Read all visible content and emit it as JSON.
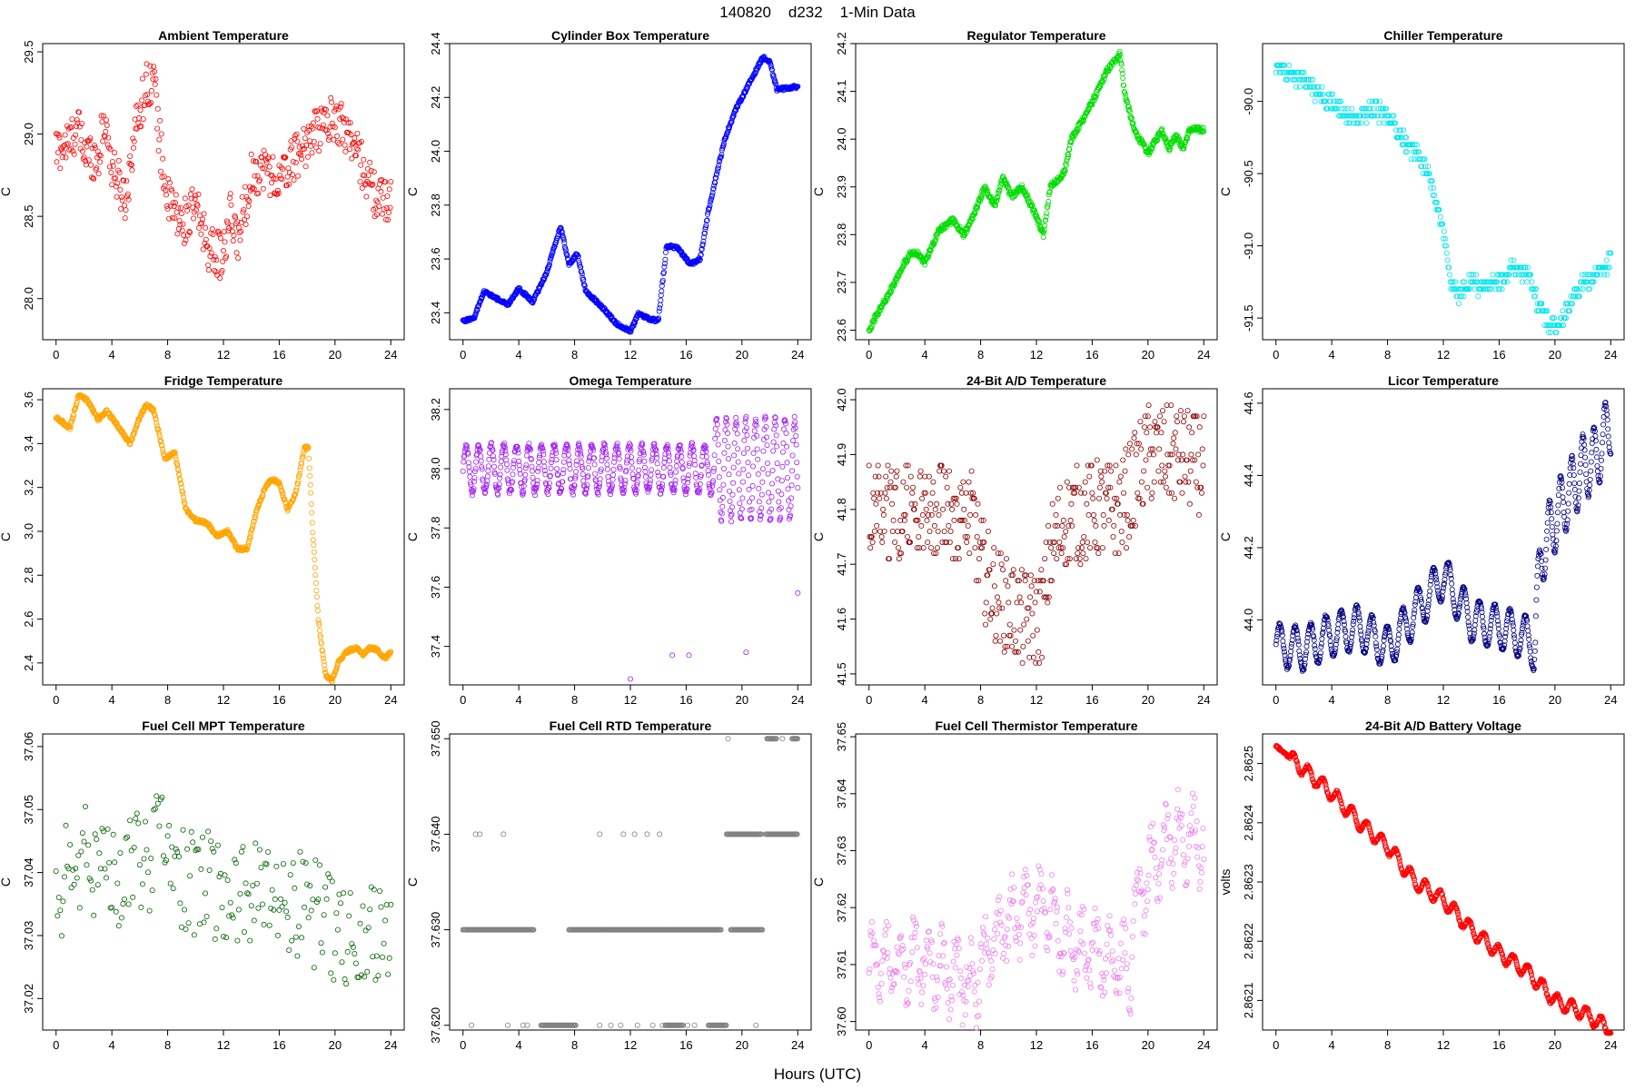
{
  "figure": {
    "title": "140820    d232    1-Min Data",
    "xlabel": "Hours (UTC)"
  },
  "chart_data": [
    {
      "type": "scatter",
      "title": "Ambient Temperature",
      "color": "#ff0000",
      "ylabel": "C",
      "xlim": [
        0,
        24
      ],
      "xticks": [
        0,
        4,
        8,
        12,
        16,
        20,
        24
      ],
      "ylim": [
        27.75,
        29.55
      ],
      "yticks": [
        28.0,
        28.5,
        29.0,
        29.5
      ],
      "ytick_labels": [
        "28.0",
        "28.5",
        "29.0",
        "29.5"
      ],
      "x": [
        0,
        1,
        1.5,
        2,
        3,
        3.5,
        4,
        5,
        5.5,
        6,
        6.5,
        7,
        7.5,
        8,
        9,
        10,
        11,
        12,
        12.5,
        13,
        14,
        15,
        16,
        17,
        18,
        19,
        20,
        21,
        22,
        23,
        24
      ],
      "y": [
        28.9,
        28.95,
        29.05,
        28.9,
        28.85,
        29.1,
        28.8,
        28.6,
        28.95,
        29.15,
        29.3,
        29.35,
        28.9,
        28.6,
        28.45,
        28.55,
        28.3,
        28.25,
        28.5,
        28.35,
        28.75,
        28.8,
        28.7,
        28.85,
        28.95,
        29.05,
        29.1,
        29.0,
        28.8,
        28.6,
        28.6
      ],
      "spread": 0.14,
      "dense": 2
    },
    {
      "type": "scatter",
      "title": "Cylinder Box Temperature",
      "color": "#0000ff",
      "ylabel": "C",
      "xlim": [
        0,
        24
      ],
      "xticks": [
        0,
        4,
        8,
        12,
        16,
        20,
        24
      ],
      "ylim": [
        23.3,
        24.4
      ],
      "yticks": [
        23.4,
        23.6,
        23.8,
        24.0,
        24.2,
        24.4
      ],
      "ytick_labels": [
        "23.4",
        "23.6",
        "23.8",
        "24.0",
        "24.2",
        "24.4"
      ],
      "x": [
        0,
        0.8,
        1.5,
        2.5,
        3.2,
        4,
        5,
        6,
        7,
        7.6,
        8.2,
        8.8,
        10,
        11,
        12,
        12.6,
        13.2,
        14,
        14.6,
        15.4,
        16.3,
        17,
        17.6,
        18.2,
        18.8,
        19.5,
        20.5,
        21.5,
        22,
        22.5,
        24
      ],
      "y": [
        23.37,
        23.38,
        23.48,
        23.45,
        23.43,
        23.49,
        23.44,
        23.55,
        23.72,
        23.58,
        23.62,
        23.48,
        23.42,
        23.36,
        23.33,
        23.4,
        23.38,
        23.37,
        23.65,
        23.64,
        23.58,
        23.6,
        23.78,
        23.92,
        24.05,
        24.15,
        24.25,
        24.35,
        24.33,
        24.23,
        24.24
      ],
      "spread": 0.006,
      "dense": 3
    },
    {
      "type": "scatter",
      "title": "Regulator Temperature",
      "color": "#00dd00",
      "ylabel": "C",
      "xlim": [
        0,
        24
      ],
      "xticks": [
        0,
        4,
        8,
        12,
        16,
        20,
        24
      ],
      "ylim": [
        23.58,
        24.2
      ],
      "yticks": [
        23.6,
        23.7,
        23.8,
        23.9,
        24.0,
        24.1,
        24.2
      ],
      "ytick_labels": [
        "23.6",
        "23.7",
        "23.8",
        "23.9",
        "24.0",
        "24.1",
        "24.2"
      ],
      "x": [
        0,
        0.5,
        1.5,
        2.5,
        3,
        3.5,
        4,
        5,
        6,
        6.8,
        7.5,
        8.3,
        9,
        9.6,
        10.2,
        11,
        11.8,
        12.5,
        13,
        14,
        14.5,
        15.5,
        16.4,
        17,
        17.5,
        18,
        18.3,
        19,
        20,
        21,
        21.5,
        22,
        22.5,
        23,
        24
      ],
      "y": [
        23.6,
        23.63,
        23.68,
        23.74,
        23.76,
        23.76,
        23.74,
        23.81,
        23.83,
        23.8,
        23.84,
        23.9,
        23.86,
        23.92,
        23.88,
        23.9,
        23.85,
        23.8,
        23.9,
        23.93,
        24.0,
        24.05,
        24.1,
        24.14,
        24.16,
        24.18,
        24.1,
        24.02,
        23.97,
        24.02,
        23.98,
        24.01,
        23.98,
        24.02,
        24.02
      ],
      "spread": 0.006,
      "dense": 3
    },
    {
      "type": "scatter",
      "title": "Chiller Temperature",
      "color": "#00e5ee",
      "ylabel": "C",
      "xlim": [
        0,
        24
      ],
      "xticks": [
        0,
        4,
        8,
        12,
        16,
        20,
        24
      ],
      "ylim": [
        -91.65,
        -89.6
      ],
      "yticks": [
        -90.0,
        -90.5,
        -91.0,
        -91.5
      ],
      "ytick_labels": [
        "-90.0",
        "-90.5",
        "-91.0",
        "-91.5"
      ],
      "x": [
        0,
        1,
        2,
        3,
        4,
        5,
        6,
        7,
        8,
        9,
        10,
        11,
        12,
        12.5,
        13,
        14,
        15,
        16,
        17,
        18,
        19,
        20,
        21,
        22,
        23,
        24
      ],
      "y": [
        -89.78,
        -89.8,
        -89.85,
        -89.95,
        -90.0,
        -90.1,
        -90.12,
        -90.05,
        -90.1,
        -90.25,
        -90.35,
        -90.5,
        -90.9,
        -91.25,
        -91.35,
        -91.25,
        -91.3,
        -91.25,
        -91.15,
        -91.2,
        -91.45,
        -91.58,
        -91.4,
        -91.25,
        -91.2,
        -91.1
      ],
      "spread": 0.06,
      "dense": 2,
      "quantize": 0.05
    },
    {
      "type": "scatter",
      "title": "Fridge Temperature",
      "color": "#ffa500",
      "ylabel": "C",
      "xlim": [
        0,
        24
      ],
      "xticks": [
        0,
        4,
        8,
        12,
        16,
        20,
        24
      ],
      "ylim": [
        2.3,
        3.65
      ],
      "yticks": [
        2.4,
        2.6,
        2.8,
        3.0,
        3.2,
        3.4,
        3.6
      ],
      "ytick_labels": [
        "2.4",
        "2.6",
        "2.8",
        "3.0",
        "3.2",
        "3.4",
        "3.6"
      ],
      "x": [
        0,
        1,
        1.6,
        2.2,
        3,
        3.6,
        4.2,
        5.3,
        6,
        6.5,
        7,
        7.8,
        8.5,
        9.3,
        10,
        10.8,
        11.5,
        12.3,
        13,
        13.7,
        14.4,
        15,
        15.5,
        16,
        16.6,
        17.2,
        17.8,
        18.1,
        18.4,
        18.8,
        19.3,
        19.8,
        20.2,
        20.8,
        21.5,
        22,
        22.5,
        23,
        23.6,
        24
      ],
      "y": [
        3.52,
        3.47,
        3.62,
        3.6,
        3.51,
        3.55,
        3.5,
        3.4,
        3.52,
        3.58,
        3.55,
        3.33,
        3.36,
        3.1,
        3.05,
        3.04,
        2.98,
        3.0,
        2.92,
        2.92,
        3.1,
        3.2,
        3.24,
        3.22,
        3.1,
        3.18,
        3.38,
        3.38,
        3.0,
        2.6,
        2.35,
        2.32,
        2.4,
        2.45,
        2.47,
        2.44,
        2.47,
        2.46,
        2.42,
        2.45
      ],
      "spread": 0.008,
      "dense": 3
    },
    {
      "type": "scatter",
      "title": "Omega Temperature",
      "color": "#a020f0",
      "ylabel": "C",
      "xlim": [
        0,
        24
      ],
      "xticks": [
        0,
        4,
        8,
        12,
        16,
        20,
        24
      ],
      "ylim": [
        37.27,
        38.27
      ],
      "yticks": [
        37.4,
        37.6,
        37.8,
        38.0,
        38.2
      ],
      "ytick_labels": [
        "37.4",
        "37.6",
        "37.8",
        "38.0",
        "38.2"
      ],
      "x": [
        0,
        18,
        18.01,
        24
      ],
      "y": [
        38.0,
        38.0,
        38.0,
        38.0
      ],
      "osc": [
        {
          "from": 0,
          "to": 18,
          "amp": 0.08,
          "period": 0.9
        },
        {
          "from": 18,
          "to": 24,
          "amp": 0.17,
          "period": 0.7
        }
      ],
      "outliers": [
        [
          12.0,
          37.29
        ],
        [
          15.0,
          37.37
        ],
        [
          16.2,
          37.37
        ],
        [
          20.3,
          37.38
        ],
        [
          24.0,
          37.58
        ]
      ],
      "spread": 0.01,
      "dense": 3
    },
    {
      "type": "scatter",
      "title": "24-Bit A/D Temperature",
      "color": "#8b0000",
      "ylabel": "C",
      "xlim": [
        0,
        24
      ],
      "xticks": [
        0,
        4,
        8,
        12,
        16,
        20,
        24
      ],
      "ylim": [
        41.48,
        42.02
      ],
      "yticks": [
        41.5,
        41.6,
        41.7,
        41.8,
        41.9,
        42.0
      ],
      "ytick_labels": [
        "41.5",
        "41.6",
        "41.7",
        "41.8",
        "41.9",
        "42.0"
      ],
      "x": [
        0,
        6,
        7.5,
        8,
        9,
        10,
        11,
        12,
        12.5,
        13,
        14,
        16,
        18,
        19,
        20,
        22,
        24
      ],
      "y": [
        41.8,
        41.8,
        41.78,
        41.7,
        41.65,
        41.62,
        41.6,
        41.6,
        41.62,
        41.72,
        41.78,
        41.8,
        41.8,
        41.85,
        41.9,
        41.9,
        41.88
      ],
      "spread": 0.09,
      "dense": 2,
      "quantize": 0.01
    },
    {
      "type": "scatter",
      "title": "Licor Temperature",
      "color": "#000080",
      "ylabel": "C",
      "xlim": [
        0,
        24
      ],
      "xticks": [
        0,
        4,
        8,
        12,
        16,
        20,
        24
      ],
      "ylim": [
        43.82,
        44.64
      ],
      "yticks": [
        44.0,
        44.2,
        44.4,
        44.6
      ],
      "ytick_labels": [
        "44.0",
        "44.2",
        "44.4",
        "44.6"
      ],
      "x": [
        0,
        2,
        4,
        6,
        8,
        10,
        12,
        14,
        16,
        18,
        18.5,
        19,
        20,
        22,
        23,
        24
      ],
      "y": [
        43.93,
        43.92,
        43.96,
        43.98,
        43.92,
        44.02,
        44.12,
        44.0,
        43.98,
        43.95,
        43.92,
        44.18,
        44.28,
        44.42,
        44.45,
        44.55
      ],
      "osc": [
        {
          "from": 0,
          "to": 18.6,
          "amp": 0.06,
          "period": 1.1
        },
        {
          "from": 18.6,
          "to": 24,
          "amp": 0.09,
          "period": 0.8
        }
      ],
      "spread": 0.004,
      "dense": 3
    },
    {
      "type": "scatter",
      "title": "Fuel Cell MPT Temperature",
      "color": "#006400",
      "ylabel": "C",
      "xlim": [
        0,
        24
      ],
      "xticks": [
        0,
        4,
        8,
        12,
        16,
        20,
        24
      ],
      "ylim": [
        37.015,
        37.062
      ],
      "yticks": [
        37.02,
        37.03,
        37.04,
        37.05,
        37.06
      ],
      "ytick_labels": [
        "37.02",
        "37.03",
        "37.04",
        "37.05",
        "37.06"
      ],
      "x": [
        0,
        2,
        4,
        6,
        8,
        9,
        12,
        16,
        18,
        20,
        22,
        24
      ],
      "y": [
        37.038,
        37.042,
        37.04,
        37.042,
        37.044,
        37.038,
        37.038,
        37.037,
        37.035,
        37.03,
        37.032,
        37.03
      ],
      "spread": 0.009,
      "dense": 1
    },
    {
      "type": "scatter",
      "title": "Fuel Cell RTD Temperature",
      "color": "#808080",
      "ylabel": "C",
      "xlim": [
        0,
        24
      ],
      "xticks": [
        0,
        4,
        8,
        12,
        16,
        20,
        24
      ],
      "ylim": [
        37.6195,
        37.6505
      ],
      "yticks": [
        37.62,
        37.63,
        37.64,
        37.65
      ],
      "ytick_labels": [
        "37.620",
        "37.630",
        "37.640",
        "37.650"
      ],
      "levels": [
        {
          "y": 37.63,
          "segments": [
            [
              0,
              5.1
            ],
            [
              7.6,
              18.5
            ],
            [
              19.2,
              21.5
            ]
          ]
        },
        {
          "y": 37.62,
          "segments": [
            [
              5.6,
              8.1
            ],
            [
              14.5,
              15.8
            ],
            [
              17.6,
              18.9
            ]
          ],
          "sparse": [
            0.6,
            3.2,
            4.3,
            4.6,
            9.8,
            10.6,
            11.3,
            12.5,
            13.6,
            14.3,
            16.1,
            16.6,
            21.0
          ]
        },
        {
          "y": 37.64,
          "segments": [
            [
              18.9,
              21.4
            ],
            [
              21.7,
              24
            ]
          ],
          "sparse": [
            0.9,
            1.2,
            2.9,
            9.8,
            11.5,
            12.3,
            13.2,
            14.1
          ]
        },
        {
          "y": 37.65,
          "segments": [
            [
              21.8,
              22.5
            ],
            [
              23.6,
              24
            ]
          ],
          "sparse": [
            19.0,
            22.9
          ]
        }
      ]
    },
    {
      "type": "scatter",
      "title": "Fuel Cell Thermistor Temperature",
      "color": "#ee82ee",
      "ylabel": "C",
      "xlim": [
        0,
        24
      ],
      "xticks": [
        0,
        4,
        8,
        12,
        16,
        20,
        24
      ],
      "ylim": [
        37.5985,
        37.6505
      ],
      "yticks": [
        37.6,
        37.61,
        37.62,
        37.63,
        37.64,
        37.65
      ],
      "ytick_labels": [
        "37.60",
        "37.61",
        "37.62",
        "37.63",
        "37.64",
        "37.65"
      ],
      "x": [
        0,
        2,
        4,
        6,
        7.5,
        8,
        10,
        12,
        13,
        14,
        16,
        18,
        18.8,
        19,
        20,
        21,
        22,
        23,
        24
      ],
      "y": [
        37.61,
        37.61,
        37.611,
        37.608,
        37.606,
        37.61,
        37.617,
        37.62,
        37.62,
        37.615,
        37.612,
        37.61,
        37.61,
        37.62,
        37.625,
        37.63,
        37.633,
        37.632,
        37.632
      ],
      "osc": [
        {
          "from": 0,
          "to": 24,
          "amp": 0.005,
          "period": 1.0
        }
      ],
      "spread": 0.004,
      "dense": 2
    },
    {
      "type": "scatter",
      "title": "24-Bit A/D Battery Voltage",
      "color": "#ff0000",
      "ylabel": "volts",
      "xlim": [
        0,
        24
      ],
      "xticks": [
        0,
        4,
        8,
        12,
        16,
        20,
        24
      ],
      "ylim": [
        2.86205,
        2.86255
      ],
      "yticks": [
        2.8621,
        2.8622,
        2.8623,
        2.8624,
        2.8625
      ],
      "ytick_labels": [
        "2.8621",
        "2.8622",
        "2.8623",
        "2.8624",
        "2.8625"
      ],
      "x": [
        0,
        1,
        4,
        6,
        8,
        10,
        12,
        14,
        16,
        18,
        20,
        22,
        24
      ],
      "y": [
        2.86253,
        2.86251,
        2.86245,
        2.8624,
        2.86236,
        2.8623,
        2.86227,
        2.86222,
        2.86218,
        2.86215,
        2.8621,
        2.86208,
        2.86205
      ],
      "osc": [
        {
          "from": 1,
          "to": 24,
          "amp": 1.2e-05,
          "period": 1.05
        }
      ],
      "spread": 2e-06,
      "dense": 3
    }
  ]
}
